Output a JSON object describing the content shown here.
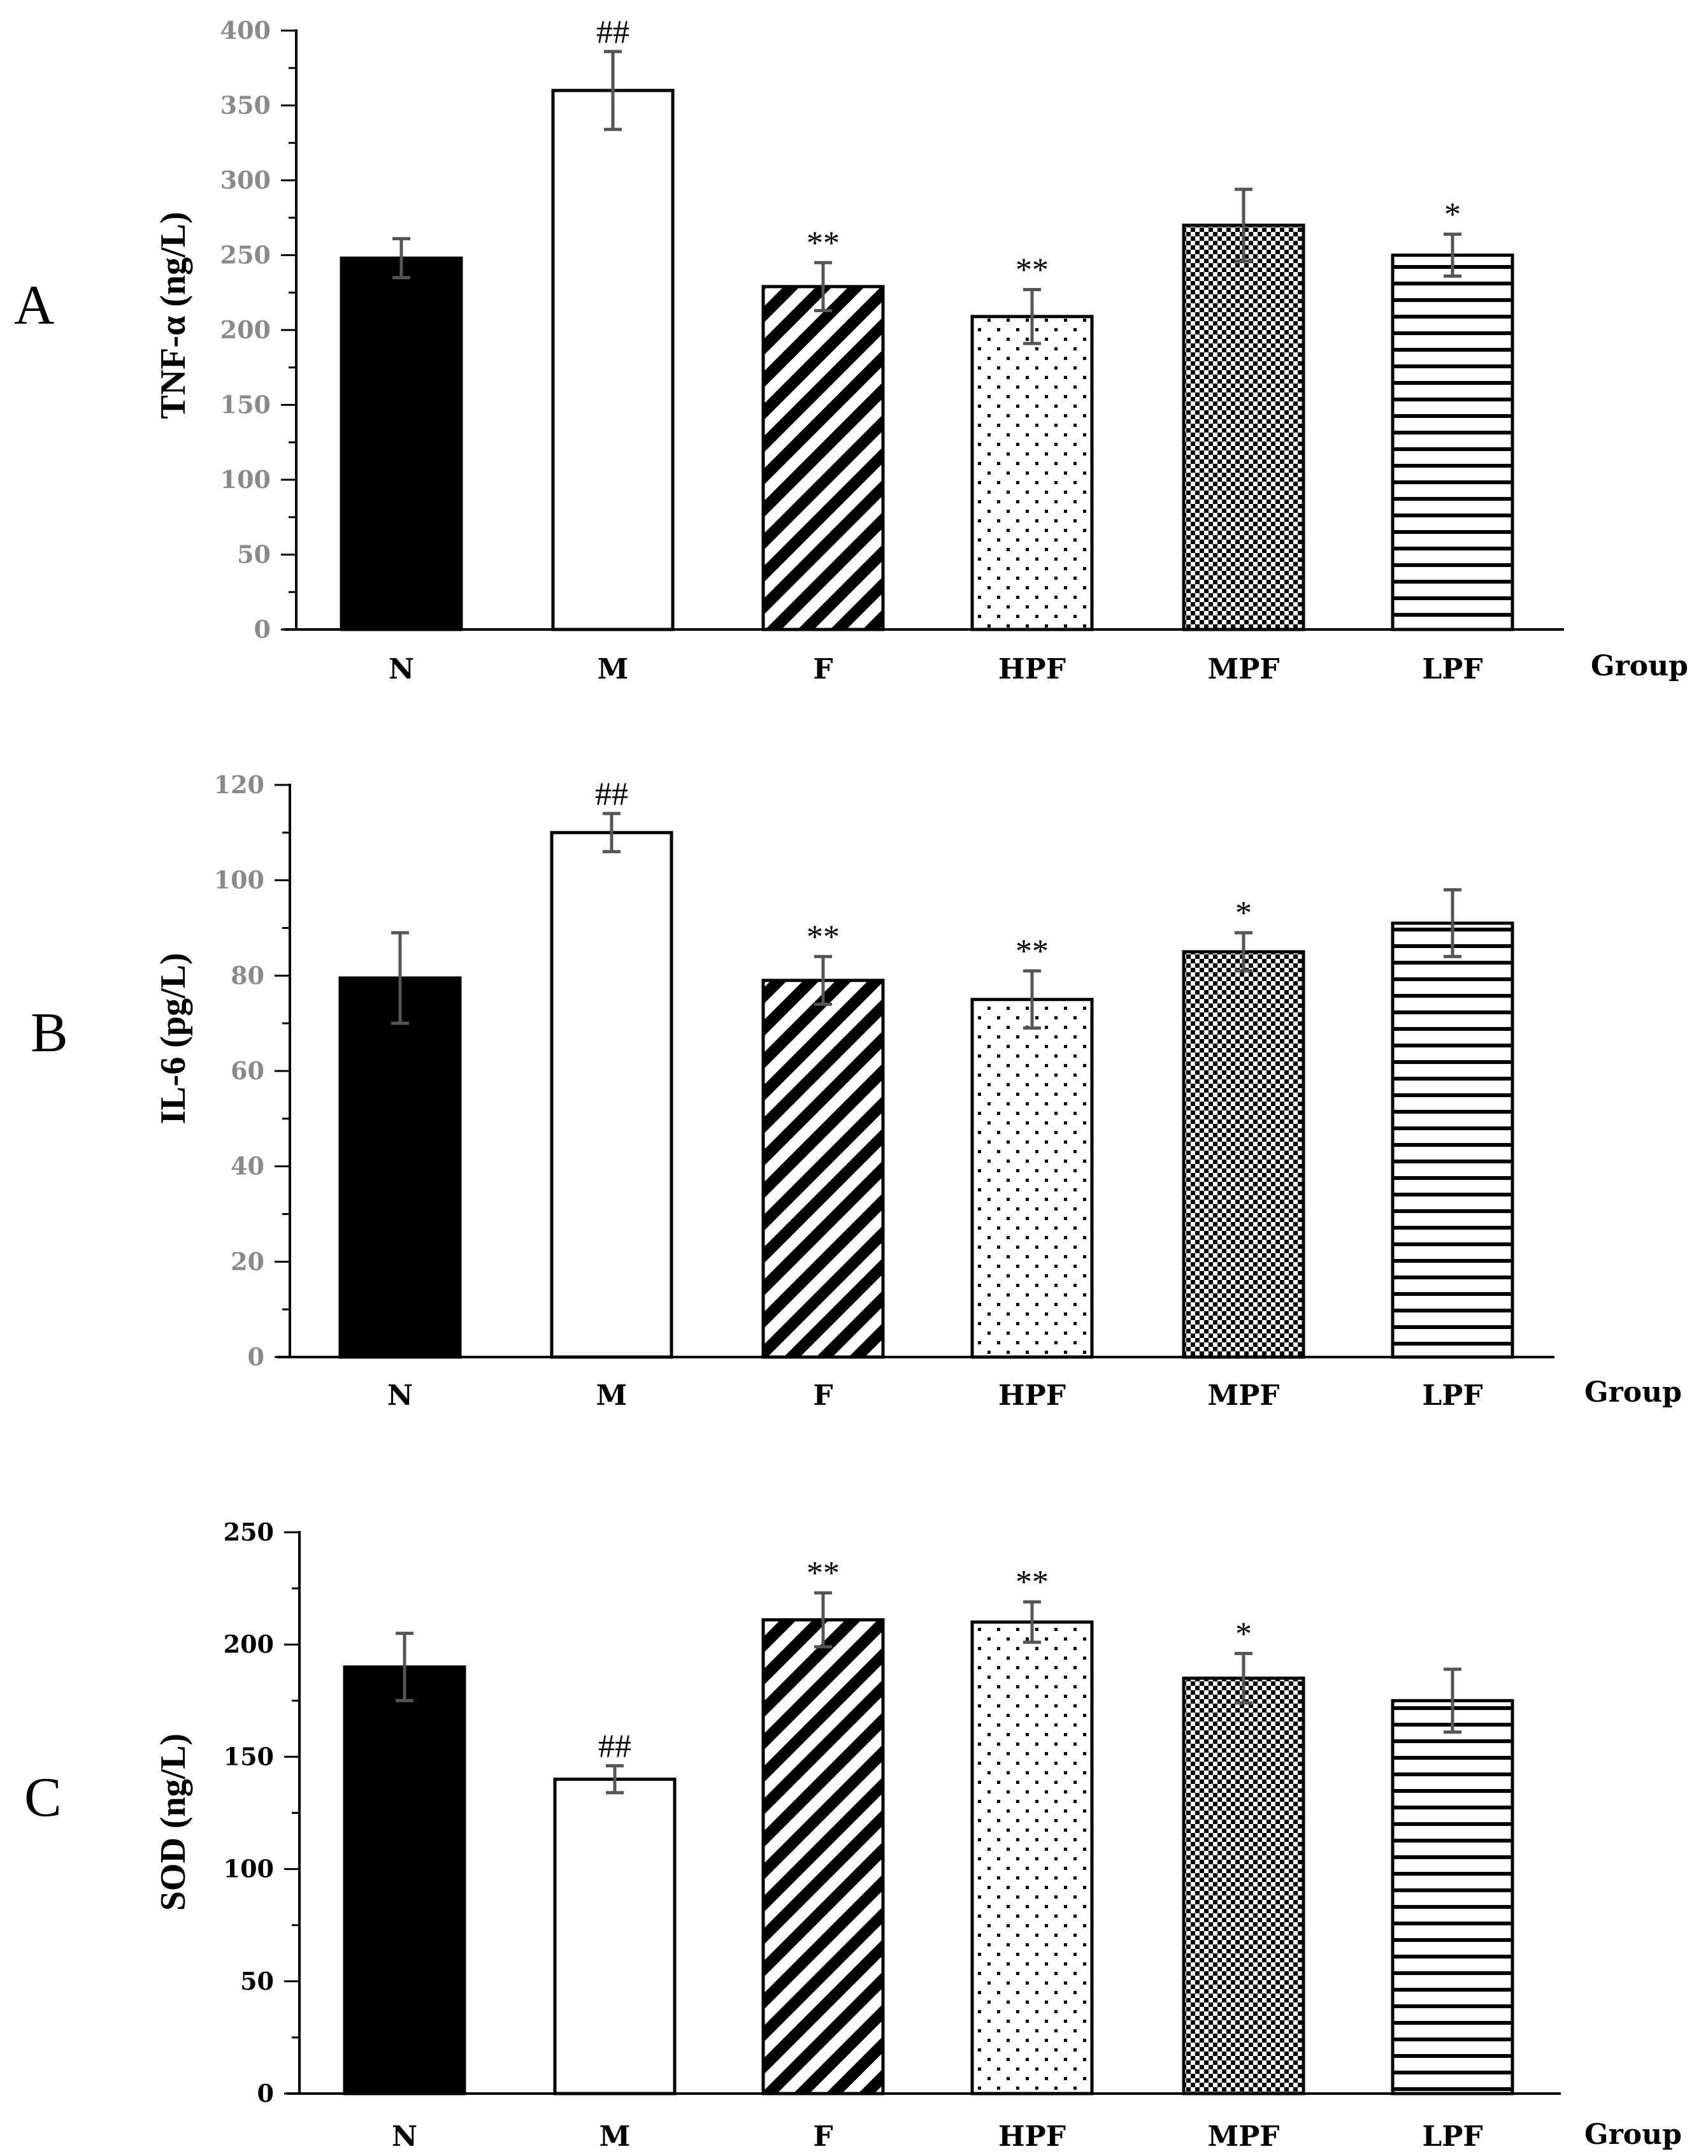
{
  "chart_data": [
    {
      "type": "bar",
      "panel": "A",
      "categories": [
        "N",
        "M",
        "F",
        "HPF",
        "MPF",
        "LPF"
      ],
      "values": [
        248,
        360,
        229,
        209,
        270,
        250
      ],
      "errors": [
        13,
        26,
        16,
        18,
        24,
        14
      ],
      "annotations": [
        "",
        "##",
        "**",
        "**",
        "",
        "*"
      ],
      "ylabel": "TNF-α (ng/L)",
      "xlabel": "Group",
      "ylim": [
        0,
        400
      ],
      "yticks": [
        0,
        50,
        100,
        150,
        200,
        250,
        300,
        350,
        400
      ]
    },
    {
      "type": "bar",
      "panel": "B",
      "categories": [
        "N",
        "M",
        "F",
        "HPF",
        "MPF",
        "LPF"
      ],
      "values": [
        79.5,
        110,
        79,
        75,
        85,
        91
      ],
      "errors": [
        9.5,
        4,
        5,
        6,
        4,
        7
      ],
      "annotations": [
        "",
        "##",
        "**",
        "**",
        "*",
        ""
      ],
      "ylabel": "IL-6 (pg/L)",
      "xlabel": "Group",
      "ylim": [
        0,
        120
      ],
      "yticks": [
        0,
        20,
        40,
        60,
        80,
        100,
        120
      ]
    },
    {
      "type": "bar",
      "panel": "C",
      "categories": [
        "N",
        "M",
        "F",
        "HPF",
        "MPF",
        "LPF"
      ],
      "values": [
        190,
        140,
        211,
        210,
        185,
        175
      ],
      "errors": [
        15,
        6,
        12,
        9,
        11,
        14
      ],
      "annotations": [
        "",
        "##",
        "**",
        "**",
        "*",
        ""
      ],
      "ylabel": "SOD (ng/L)",
      "xlabel": "Group",
      "ylim": [
        0,
        250
      ],
      "yticks": [
        0,
        50,
        100,
        150,
        200,
        250
      ]
    }
  ],
  "colors": {
    "axis": "#000000",
    "tick_text": "#8a8a8a",
    "error_bar": "#555555",
    "fill_dark": "#000000",
    "fill_light": "#ffffff"
  },
  "patterns": [
    "solid",
    "empty",
    "diagonal",
    "dots",
    "checker",
    "horizontal"
  ]
}
